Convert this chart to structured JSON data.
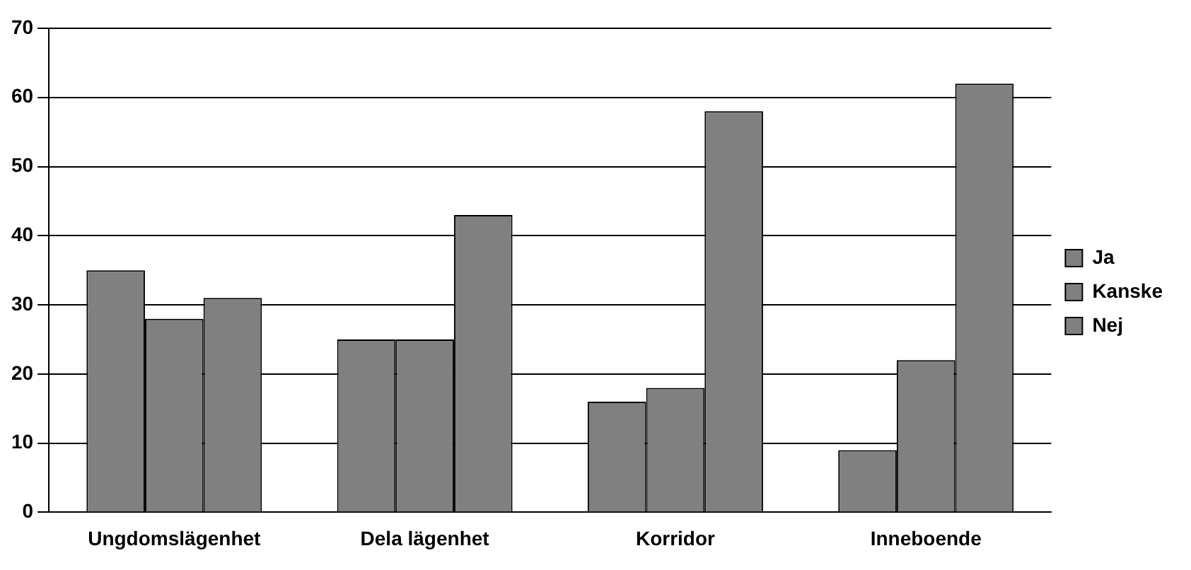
{
  "chart_data": {
    "type": "bar",
    "categories": [
      "Ungdomslägenhet",
      "Dela lägenhet",
      "Korridor",
      "Inneboende"
    ],
    "series": [
      {
        "name": "Ja",
        "color": "#808080",
        "values": [
          35,
          25,
          16,
          9
        ]
      },
      {
        "name": "Kanske",
        "color": "#808080",
        "values": [
          28,
          25,
          18,
          22
        ]
      },
      {
        "name": "Nej",
        "color": "#808080",
        "values": [
          31,
          43,
          58,
          62
        ]
      }
    ],
    "ylim": [
      0,
      70
    ],
    "yticks": [
      0,
      10,
      20,
      30,
      40,
      50,
      60,
      70
    ],
    "grid": "y",
    "legend": "right"
  }
}
